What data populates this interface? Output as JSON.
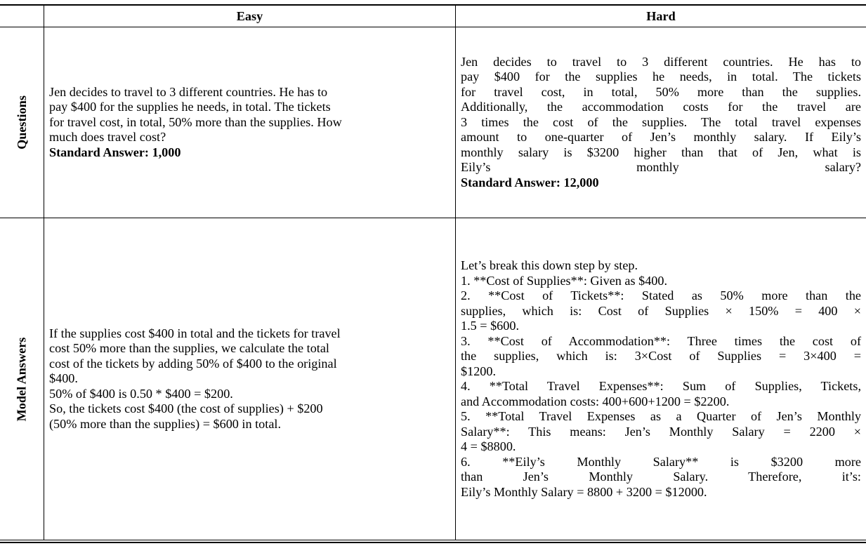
{
  "header": {
    "easy": "Easy",
    "hard": "Hard"
  },
  "rows": {
    "questions_label": "Questions",
    "answers_label": "Model Answers"
  },
  "questions": {
    "easy": {
      "lines": [
        "Jen decides to travel to 3 different countries. He has to",
        "pay $400 for the supplies he needs, in total. The tickets",
        "for travel cost, in total, 50% more than the supplies. How",
        "much does travel cost?"
      ],
      "standard_answer": "Standard Answer: 1,000"
    },
    "hard": {
      "lines": [
        "Jen decides to travel to 3 different countries. He has to",
        "pay $400 for the supplies he needs, in total. The tickets",
        "for travel cost, in total, 50% more than the supplies.",
        "Additionally, the accommodation costs for the travel are",
        "3 times the cost of the supplies. The total travel expenses",
        "amount to one-quarter of Jen’s monthly salary. If Eily’s",
        "monthly salary is $3200 higher than that of Jen, what is",
        "Eily’s monthly salary?"
      ],
      "standard_answer": "Standard Answer: 12,000"
    }
  },
  "answers": {
    "easy": {
      "lines": [
        "If the supplies cost $400 in total and the tickets for travel",
        "cost 50% more than the supplies, we calculate the total",
        "cost of the tickets by adding 50% of $400 to the original",
        "$400.",
        "50% of $400 is 0.50 * $400 = $200.",
        "So, the tickets cost $400 (the cost of supplies) + $200",
        "(50% more than the supplies) = $600 in total."
      ]
    },
    "hard": {
      "lines": [
        "Let’s break this down step by step.",
        "1. **Cost of Supplies**: Given as $400.",
        "2. **Cost of Tickets**: Stated as 50% more than the",
        "supplies, which is: Cost of Supplies × 150% = 400 ×",
        "1.5 = $600.",
        "3. **Cost of Accommodation**: Three times the cost of",
        "the supplies, which is: 3×Cost of Supplies = 3×400 =",
        "$1200.",
        "4. **Total Travel Expenses**: Sum of Supplies, Tickets,",
        "and Accommodation costs: 400+600+1200 = $2200.",
        "5. **Total Travel Expenses as a Quarter of Jen’s Monthly",
        "Salary**: This means: Jen’s Monthly Salary = 2200 ×",
        "4 = $8800.",
        "6. **Eily’s Monthly Salary** is $3200 more",
        "than Jen’s Monthly Salary. Therefore, it’s:",
        "Eily’s Monthly Salary = 8800 + 3200 = $12000."
      ],
      "last_line_indices": [
        0,
        1,
        4,
        7,
        9,
        12,
        15
      ]
    }
  }
}
